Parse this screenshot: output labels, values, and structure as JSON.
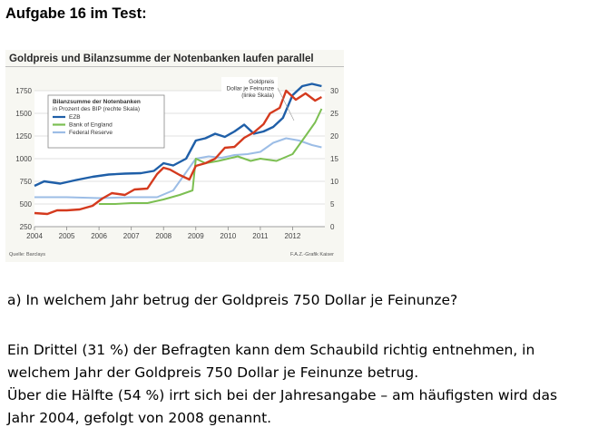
{
  "heading": "Aufgabe 16 im Test:",
  "question": "a) In welchem Jahr betrug der Goldpreis 750 Dollar je Feinunze?",
  "paragraph": [
    "Ein Drittel (31 %) der Befragten kann dem Schaubild richtig entnehmen, in",
    "welchem Jahr der Goldpreis 750 Dollar je Feinunze betrug.",
    "Über die Hälfte (54 %) irrt sich bei der Jahresangabe – am häufigsten wird das",
    "Jahr 2004, gefolgt von 2008 genannt."
  ],
  "colors": {
    "gold": "#d43a1e",
    "ezb": "#1f5fa8",
    "boe": "#7cbf52",
    "fed": "#9cbde6",
    "plot_bg": "#f7f7f2",
    "grid": "#d8d8d8"
  },
  "chart_data": {
    "type": "line",
    "title": "Goldpreis und Bilanzsumme der Notenbanken laufen parallel",
    "x_ticks": [
      "2004",
      "2005",
      "2006",
      "2007",
      "2008",
      "2009",
      "2010",
      "2011",
      "2012"
    ],
    "xlim": [
      2004,
      2013
    ],
    "left_axis": {
      "ticks": [
        "1750",
        "1500",
        "1250",
        "1000",
        "750",
        "500",
        "250"
      ],
      "ylim": [
        250,
        1750
      ]
    },
    "right_axis": {
      "ticks": [
        "30",
        "25",
        "20",
        "15",
        "10",
        "5",
        "0"
      ],
      "ylim": [
        0,
        30
      ]
    },
    "gold_label": [
      "Goldpreis",
      "Dollar je Feinunze",
      "(linke Skala)"
    ],
    "legend": {
      "title": [
        "Bilanzsumme der Notenbanken",
        "in Prozent des BIP (rechte Skala)"
      ],
      "entries": [
        "EZB",
        "Bank of England",
        "Federal Reserve"
      ]
    },
    "source": "Quelle: Barclays",
    "credit": "F.A.Z.-Grafik Kaiser",
    "series": [
      {
        "name": "Goldpreis",
        "axis": "left",
        "x": [
          2004.0,
          2004.4,
          2004.7,
          2005.0,
          2005.4,
          2005.8,
          2006.1,
          2006.4,
          2006.8,
          2007.1,
          2007.5,
          2007.8,
          2008.0,
          2008.2,
          2008.5,
          2008.8,
          2009.0,
          2009.3,
          2009.6,
          2009.9,
          2010.2,
          2010.5,
          2010.8,
          2011.1,
          2011.3,
          2011.6,
          2011.8,
          2012.1,
          2012.4,
          2012.7,
          2012.9
        ],
        "y": [
          400,
          390,
          430,
          430,
          440,
          480,
          560,
          620,
          600,
          660,
          670,
          830,
          900,
          880,
          820,
          770,
          920,
          950,
          1000,
          1120,
          1130,
          1230,
          1290,
          1380,
          1500,
          1560,
          1750,
          1650,
          1720,
          1640,
          1680
        ]
      },
      {
        "name": "EZB",
        "axis": "right",
        "x": [
          2004.0,
          2004.3,
          2004.8,
          2005.3,
          2005.8,
          2006.3,
          2006.8,
          2007.3,
          2007.7,
          2008.0,
          2008.3,
          2008.7,
          2009.0,
          2009.3,
          2009.6,
          2009.9,
          2010.2,
          2010.5,
          2010.8,
          2011.1,
          2011.4,
          2011.7,
          2012.0,
          2012.3,
          2012.6,
          2012.9
        ],
        "y": [
          9.0,
          10.0,
          9.5,
          10.3,
          11.0,
          11.5,
          11.7,
          11.8,
          12.3,
          14.0,
          13.5,
          15.0,
          19.0,
          19.5,
          20.5,
          19.8,
          21.0,
          22.5,
          20.5,
          21.0,
          22.0,
          24.0,
          29.0,
          31.0,
          31.5,
          31.0
        ]
      },
      {
        "name": "Bank of England",
        "axis": "right",
        "x": [
          2006.0,
          2006.5,
          2007.0,
          2007.5,
          2008.0,
          2008.5,
          2008.9,
          2009.0,
          2009.3,
          2009.7,
          2010.0,
          2010.3,
          2010.7,
          2011.0,
          2011.5,
          2012.0,
          2012.4,
          2012.7,
          2012.9
        ],
        "y": [
          5.0,
          5.0,
          5.2,
          5.2,
          6.0,
          7.0,
          8.0,
          15.0,
          14.0,
          14.5,
          15.0,
          15.5,
          14.5,
          15.0,
          14.5,
          16.0,
          20.0,
          23.0,
          26.0
        ]
      },
      {
        "name": "Federal Reserve",
        "axis": "right",
        "x": [
          2004.0,
          2005.0,
          2006.0,
          2007.0,
          2007.8,
          2008.3,
          2008.7,
          2009.0,
          2009.4,
          2009.8,
          2010.2,
          2010.6,
          2011.0,
          2011.4,
          2011.8,
          2012.2,
          2012.6,
          2012.9
        ],
        "y": [
          6.5,
          6.5,
          6.3,
          6.5,
          6.5,
          8.0,
          12.0,
          15.0,
          15.5,
          15.2,
          15.8,
          16.0,
          16.5,
          18.5,
          19.5,
          19.0,
          18.0,
          17.5
        ]
      }
    ]
  }
}
